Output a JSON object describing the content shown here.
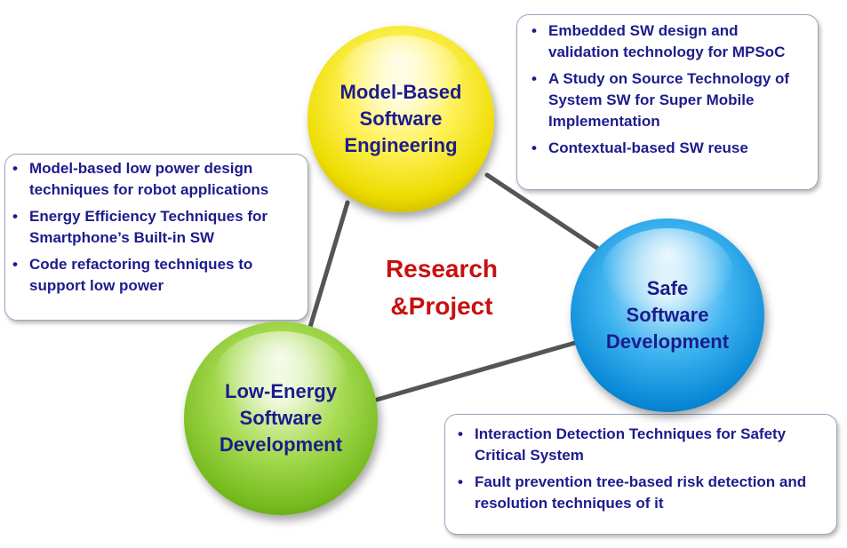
{
  "center_label": "Research\n&Project",
  "nodes": {
    "mbse": "Model-Based\nSoftware\nEngineering",
    "safe": "Safe\nSoftware\nDevelopment",
    "low_energy": "Low-Energy\nSoftware\nDevelopment"
  },
  "callouts": {
    "top_right": [
      "Embedded SW design and validation technology for MPSoC",
      "A Study on Source Technology of System SW for Super Mobile Implementation",
      "Contextual-based SW reuse"
    ],
    "left": [
      "Model-based low power design techniques for robot applications",
      "Energy Efficiency Techniques for Smartphone’s Built-in SW",
      "Code refactoring techniques to support low power"
    ],
    "bottom_right": [
      "Interaction Detection Techniques for Safety Critical System",
      "Fault prevention tree-based risk detection and resolution techniques of it"
    ]
  },
  "colors": {
    "node_text": "#1c1c8c",
    "center_text": "#c81010",
    "connector": "#555555",
    "mbse_sphere": "#f5e800",
    "safe_sphere": "#1a9be8",
    "low_energy_sphere": "#86c430"
  }
}
